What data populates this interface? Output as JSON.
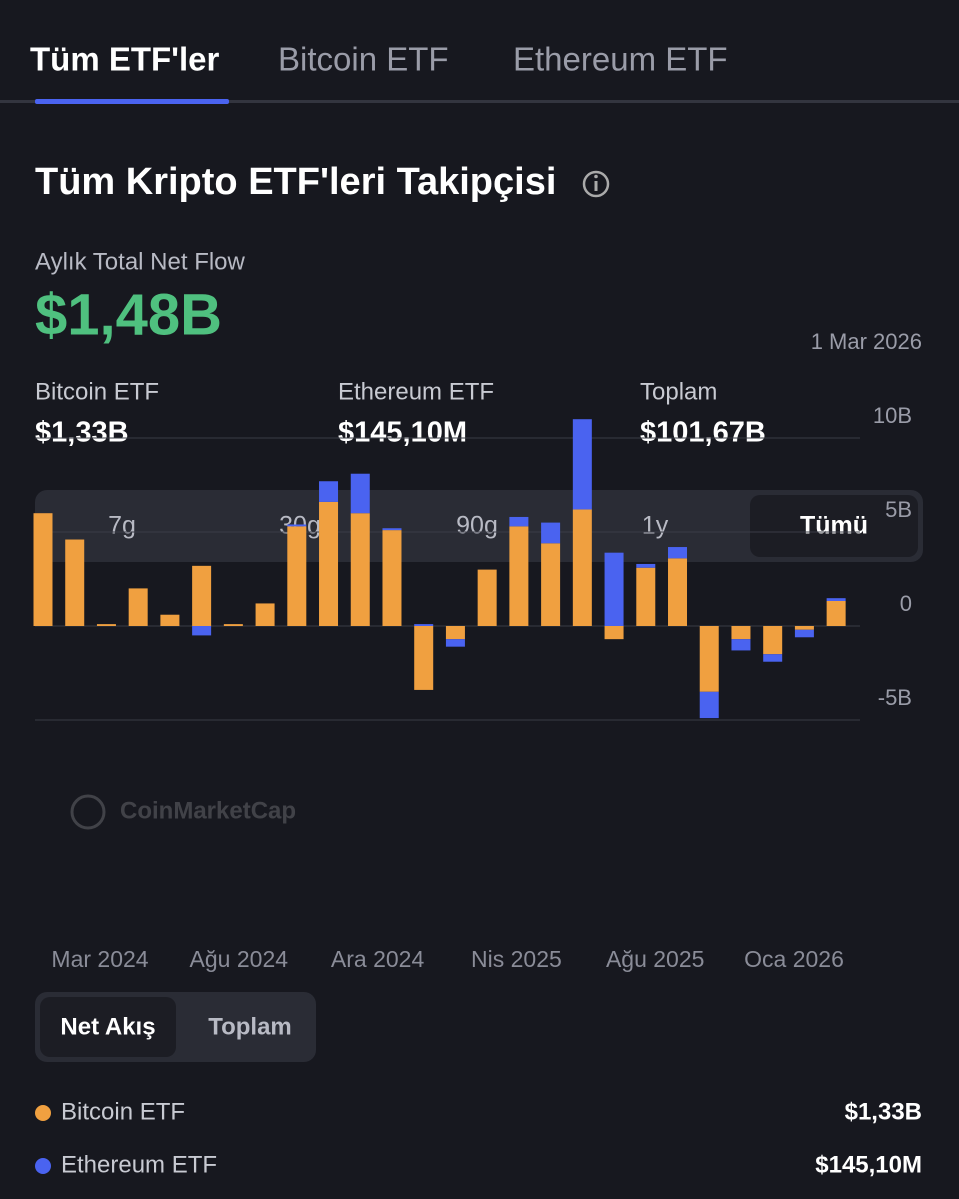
{
  "tabs": [
    "Tüm ETF'ler",
    "Bitcoin ETF",
    "Ethereum ETF"
  ],
  "heading": "Tüm Kripto ETF'leri Takipçisi",
  "monthly_label": "Aylık Total Net Flow",
  "monthly_value": "$1,48B",
  "date": "1 Mar 2026",
  "stats": [
    {
      "label": "Bitcoin ETF",
      "value": "$1,33B"
    },
    {
      "label": "Ethereum ETF",
      "value": "$145,10M"
    },
    {
      "label": "Toplam",
      "value": "$101,67B"
    }
  ],
  "periods": [
    "7g",
    "30g",
    "90g",
    "1y",
    "Tümü"
  ],
  "view_toggle": [
    "Net Akış",
    "Toplam"
  ],
  "chart_data": {
    "type": "stacked_bar",
    "watermark": "CoinMarketCap",
    "x_labels": [
      "Mar 2024",
      "Ağu 2024",
      "Ara 2024",
      "Nis 2025",
      "Ağu 2025",
      "Oca 2026"
    ],
    "ylim": [
      -5,
      11
    ],
    "yticks": [
      {
        "value": 10,
        "label": "10B"
      },
      {
        "value": 5,
        "label": "5B"
      },
      0,
      {
        "value": -5,
        "label": "-5B"
      }
    ],
    "grid": true,
    "series": [
      {
        "name": "Bitcoin ETF",
        "color": "#f0a040",
        "legend_value": "$1,33B",
        "values": [
          6.0,
          4.6,
          0.1,
          2.0,
          0.6,
          3.2,
          0.1,
          1.2,
          5.3,
          6.6,
          6.0,
          5.1,
          -3.4,
          -0.7,
          3.0,
          5.3,
          4.4,
          6.2,
          -0.7,
          3.1,
          3.6,
          -3.5,
          -0.7,
          -1.5,
          -0.2,
          1.33
        ]
      },
      {
        "name": "Ethereum ETF",
        "color": "#4a63f0",
        "legend_value": "$145,10M",
        "values": [
          0,
          0,
          0,
          0,
          0,
          -0.5,
          0,
          0,
          0.1,
          1.1,
          2.1,
          0.1,
          0.1,
          -0.4,
          0,
          0.5,
          1.1,
          4.8,
          3.9,
          0.2,
          0.6,
          -1.4,
          -0.6,
          -0.4,
          -0.4,
          0.15
        ]
      }
    ]
  }
}
